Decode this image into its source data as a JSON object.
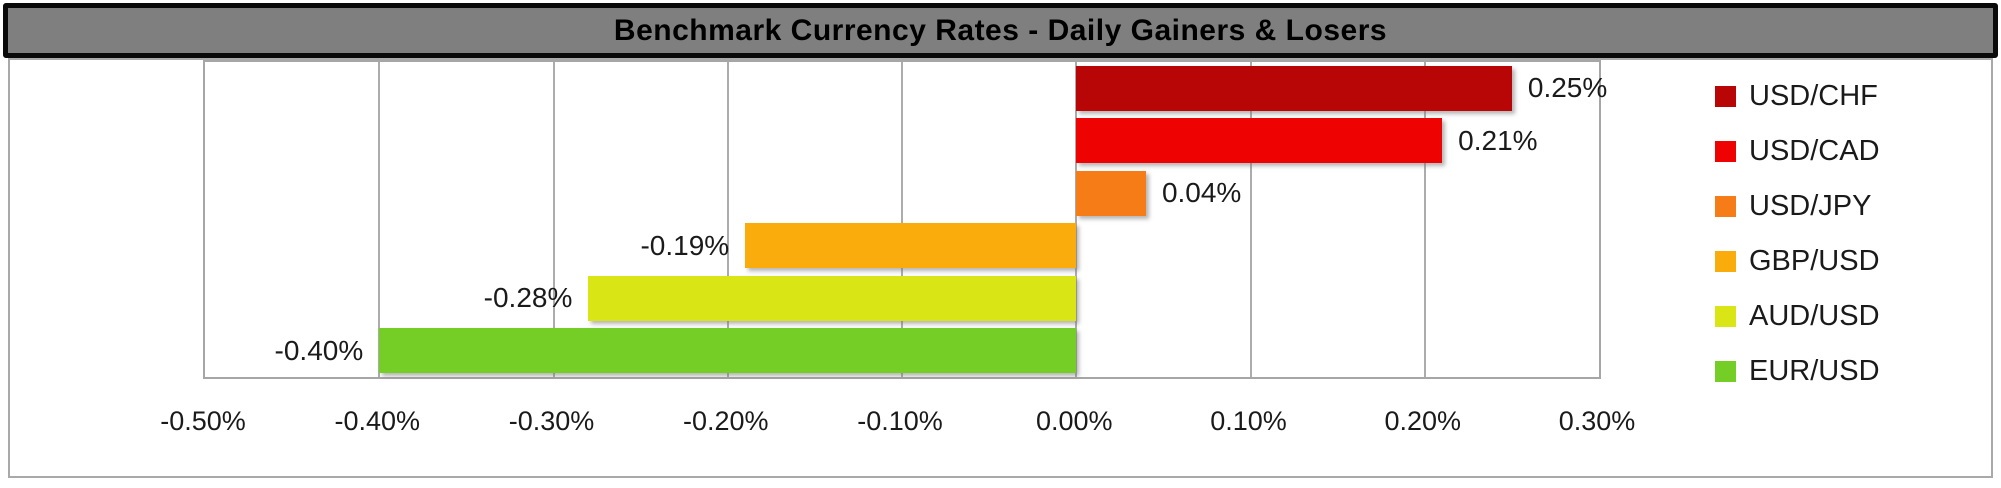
{
  "title": "Benchmark Currency Rates - Daily Gainers & Losers",
  "colors": {
    "title_bg": "#7f7f7f",
    "title_border": "#0a0a0a",
    "chart_border": "#a9a9a9",
    "gridline": "#acacac"
  },
  "chart_data": {
    "type": "bar",
    "orientation": "horizontal",
    "title": "Benchmark Currency Rates - Daily Gainers & Losers",
    "series": [
      {
        "name": "USD/CHF",
        "value": 0.25,
        "label": "0.25%",
        "color": "#b80606"
      },
      {
        "name": "USD/CAD",
        "value": 0.21,
        "label": "0.21%",
        "color": "#ee0202"
      },
      {
        "name": "USD/JPY",
        "value": 0.04,
        "label": "0.04%",
        "color": "#f57c17"
      },
      {
        "name": "GBP/USD",
        "value": -0.19,
        "label": "-0.19%",
        "color": "#f9ac0c"
      },
      {
        "name": "AUD/USD",
        "value": -0.28,
        "label": "-0.28%",
        "color": "#d9e515"
      },
      {
        "name": "EUR/USD",
        "value": -0.4,
        "label": "-0.40%",
        "color": "#74ce26"
      }
    ],
    "x_ticks": [
      "-0.50%",
      "-0.40%",
      "-0.30%",
      "-0.20%",
      "-0.10%",
      "0.00%",
      "0.10%",
      "0.20%",
      "0.30%"
    ],
    "x_range": [
      -0.5,
      0.3
    ],
    "xlabel": "",
    "ylabel": "",
    "grid": true,
    "legend_position": "right",
    "value_labels": "outside-end"
  }
}
